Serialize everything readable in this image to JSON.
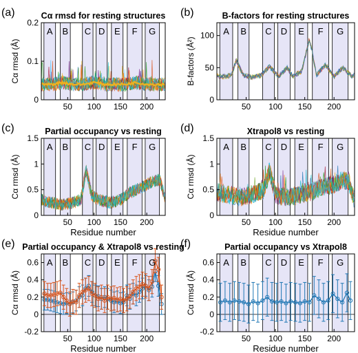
{
  "panels": [
    {
      "letter": "(a)",
      "title": "Cα rmsd for resting structures",
      "ylabel": "Cα rmsd (Å)",
      "xlabel": "",
      "ylim": [
        0,
        0.2
      ],
      "yticks": [
        "0",
        "0.1",
        "0.2"
      ]
    },
    {
      "letter": "(b)",
      "title": "B-factors for resting structures",
      "ylabel": "B-factors (Å²)",
      "xlabel": "",
      "ylim": [
        0,
        120
      ],
      "yticks": [
        "0",
        "50",
        "100"
      ]
    },
    {
      "letter": "(c)",
      "title": "Partial occupancy vs resting",
      "ylabel": "Cα rmsd (Å)",
      "xlabel": "Residue number",
      "ylim": [
        0,
        1.5
      ],
      "yticks": [
        "0",
        "0.5",
        "1",
        "1.5"
      ]
    },
    {
      "letter": "(d)",
      "title": "Xtrapol8 vs resting",
      "ylabel": "Cα rmsd (Å)",
      "xlabel": "Residue number",
      "ylim": [
        0,
        1.5
      ],
      "yticks": [
        "0",
        "0.5",
        "1",
        "1.5"
      ]
    },
    {
      "letter": "(e)",
      "title": "Partial occupancy & Xtrapol8 vs resting",
      "ylabel": "Cα rmsd (Å)",
      "xlabel": "Residue number",
      "ylim": [
        -0.2,
        0.7
      ],
      "yticks": [
        "-0.2",
        "0",
        "0.2",
        "0.4",
        "0.6"
      ]
    },
    {
      "letter": "(f)",
      "title": "Partial occupancy vs Xtrapol8",
      "ylabel": "Cα rmsd (Å)",
      "xlabel": "Residue number",
      "ylim": [
        -0.2,
        0.7
      ],
      "yticks": [
        "-0.2",
        "0",
        "0.2",
        "0.4",
        "0.6"
      ]
    }
  ],
  "xticks_top": [
    "50",
    "100",
    "150",
    "200"
  ],
  "xticks_bottom": [
    "50",
    "100",
    "150",
    "200"
  ],
  "xticks_bottom_f": [
    "50",
    "100",
    "150",
    "200"
  ],
  "strand_labels": [
    "A",
    "B",
    "C",
    "D",
    "E",
    "F",
    "G"
  ],
  "colors": {
    "strand_shade": "#e6e5f7",
    "series_blue": "#1f77b4",
    "series_orange": "#d95319",
    "series_yellow": "#edb120"
  },
  "chart_data": [
    {
      "type": "line",
      "panel": "a",
      "xlim": [
        0,
        235
      ],
      "ylim": [
        0,
        0.2
      ],
      "strands": [
        [
          5,
          27
        ],
        [
          36,
          55
        ],
        [
          78,
          98
        ],
        [
          104,
          125
        ],
        [
          133,
          155
        ],
        [
          163,
          191
        ],
        [
          197,
          224
        ]
      ],
      "series": [
        {
          "values_note": "",
          "x": [
            0,
            20,
            40,
            60,
            80,
            100,
            120,
            140,
            160,
            180,
            200,
            220,
            235
          ],
          "y": [
            0.04,
            0.04,
            0.045,
            0.04,
            0.04,
            0.045,
            0.04,
            0.04,
            0.04,
            0.045,
            0.04,
            0.04,
            0.04
          ]
        }
      ]
    },
    {
      "type": "line",
      "panel": "b",
      "xlim": [
        0,
        235
      ],
      "ylim": [
        0,
        120
      ],
      "strands": [
        [
          5,
          27
        ],
        [
          36,
          55
        ],
        [
          78,
          98
        ],
        [
          104,
          125
        ],
        [
          133,
          155
        ],
        [
          163,
          191
        ],
        [
          197,
          224
        ]
      ],
      "series": [
        {
          "x": [
            0,
            10,
            25,
            33,
            45,
            60,
            75,
            90,
            105,
            120,
            130,
            145,
            158,
            170,
            185,
            200,
            215,
            230,
            235
          ],
          "y": [
            38,
            36,
            38,
            62,
            38,
            35,
            38,
            52,
            36,
            50,
            36,
            45,
            95,
            38,
            55,
            36,
            50,
            36,
            40
          ]
        }
      ]
    },
    {
      "type": "line",
      "panel": "c",
      "xlim": [
        0,
        235
      ],
      "ylim": [
        0,
        1.5
      ],
      "strands": [
        [
          5,
          27
        ],
        [
          36,
          55
        ],
        [
          78,
          98
        ],
        [
          104,
          125
        ],
        [
          133,
          155
        ],
        [
          163,
          191
        ],
        [
          197,
          224
        ]
      ],
      "series": [
        {
          "x": [
            0,
            20,
            40,
            60,
            75,
            85,
            95,
            110,
            130,
            150,
            170,
            190,
            210,
            225,
            235
          ],
          "y": [
            0.3,
            0.25,
            0.2,
            0.25,
            0.3,
            0.9,
            0.4,
            0.3,
            0.25,
            0.3,
            0.45,
            0.55,
            0.65,
            0.7,
            0.3
          ]
        }
      ]
    },
    {
      "type": "line",
      "panel": "d",
      "xlim": [
        0,
        235
      ],
      "ylim": [
        0,
        1.5
      ],
      "strands": [
        [
          5,
          27
        ],
        [
          36,
          55
        ],
        [
          78,
          98
        ],
        [
          104,
          125
        ],
        [
          133,
          155
        ],
        [
          163,
          191
        ],
        [
          197,
          224
        ]
      ],
      "series": [
        {
          "x": [
            0,
            20,
            40,
            60,
            80,
            90,
            100,
            120,
            140,
            160,
            180,
            200,
            215,
            225,
            235
          ],
          "y": [
            0.45,
            0.4,
            0.35,
            0.4,
            0.5,
            0.85,
            0.4,
            0.35,
            0.4,
            0.45,
            0.55,
            0.6,
            0.7,
            0.65,
            0.3
          ]
        }
      ]
    },
    {
      "type": "line",
      "panel": "e",
      "xlim": [
        0,
        235
      ],
      "ylim": [
        -0.2,
        0.7
      ],
      "strands": [
        [
          5,
          27
        ],
        [
          36,
          55
        ],
        [
          78,
          98
        ],
        [
          104,
          125
        ],
        [
          133,
          155
        ],
        [
          163,
          191
        ],
        [
          197,
          224
        ]
      ],
      "series": [
        {
          "x": [
            6,
            12,
            18,
            24,
            30,
            36,
            42,
            48,
            54,
            60,
            66,
            72,
            78,
            84,
            90,
            96,
            102,
            108,
            114,
            120,
            126,
            132,
            138,
            144,
            150,
            156,
            162,
            168,
            174,
            180,
            186,
            192,
            198,
            204,
            210,
            216,
            222,
            228
          ],
          "y": [
            0.17,
            0.17,
            0.16,
            0.15,
            0.14,
            0.13,
            0.12,
            0.13,
            0.12,
            0.14,
            0.16,
            0.2,
            0.22,
            0.3,
            0.33,
            0.26,
            0.22,
            0.21,
            0.18,
            0.2,
            0.18,
            0.16,
            0.14,
            0.15,
            0.13,
            0.14,
            0.22,
            0.18,
            0.24,
            0.22,
            0.26,
            0.3,
            0.33,
            0.28,
            0.32,
            0.5,
            0.33,
            0.12
          ],
          "err": 0.12
        },
        {
          "x": [
            6,
            12,
            18,
            24,
            30,
            36,
            42,
            48,
            54,
            60,
            66,
            72,
            78,
            84,
            90,
            96,
            102,
            108,
            114,
            120,
            126,
            132,
            138,
            144,
            150,
            156,
            162,
            168,
            174,
            180,
            186,
            192,
            198,
            204,
            210,
            216,
            222,
            228
          ],
          "y": [
            0.24,
            0.22,
            0.22,
            0.23,
            0.24,
            0.25,
            0.2,
            0.16,
            0.12,
            0.15,
            0.14,
            0.22,
            0.26,
            0.28,
            0.3,
            0.24,
            0.22,
            0.18,
            0.2,
            0.16,
            0.2,
            0.18,
            0.19,
            0.17,
            0.18,
            0.16,
            0.18,
            0.21,
            0.26,
            0.3,
            0.32,
            0.35,
            0.33,
            0.3,
            0.38,
            0.62,
            0.52,
            0.2
          ],
          "err": 0.14
        }
      ]
    },
    {
      "type": "line",
      "panel": "f",
      "xlim": [
        0,
        235
      ],
      "ylim": [
        -0.2,
        0.7
      ],
      "strands": [
        [
          5,
          27
        ],
        [
          36,
          55
        ],
        [
          78,
          98
        ],
        [
          104,
          125
        ],
        [
          133,
          155
        ],
        [
          163,
          191
        ],
        [
          197,
          224
        ]
      ],
      "series": [
        {
          "x": [
            6,
            14,
            22,
            30,
            38,
            46,
            54,
            62,
            70,
            78,
            86,
            94,
            102,
            110,
            118,
            126,
            134,
            142,
            150,
            158,
            166,
            174,
            182,
            190,
            198,
            206,
            214,
            222,
            228
          ],
          "y": [
            0.14,
            0.16,
            0.14,
            0.16,
            0.15,
            0.14,
            0.12,
            0.15,
            0.13,
            0.16,
            0.2,
            0.15,
            0.14,
            0.15,
            0.13,
            0.15,
            0.14,
            0.13,
            0.15,
            0.14,
            0.22,
            0.18,
            0.14,
            0.16,
            0.24,
            0.18,
            0.14,
            0.25,
            0.16
          ],
          "err": 0.22
        }
      ]
    }
  ]
}
